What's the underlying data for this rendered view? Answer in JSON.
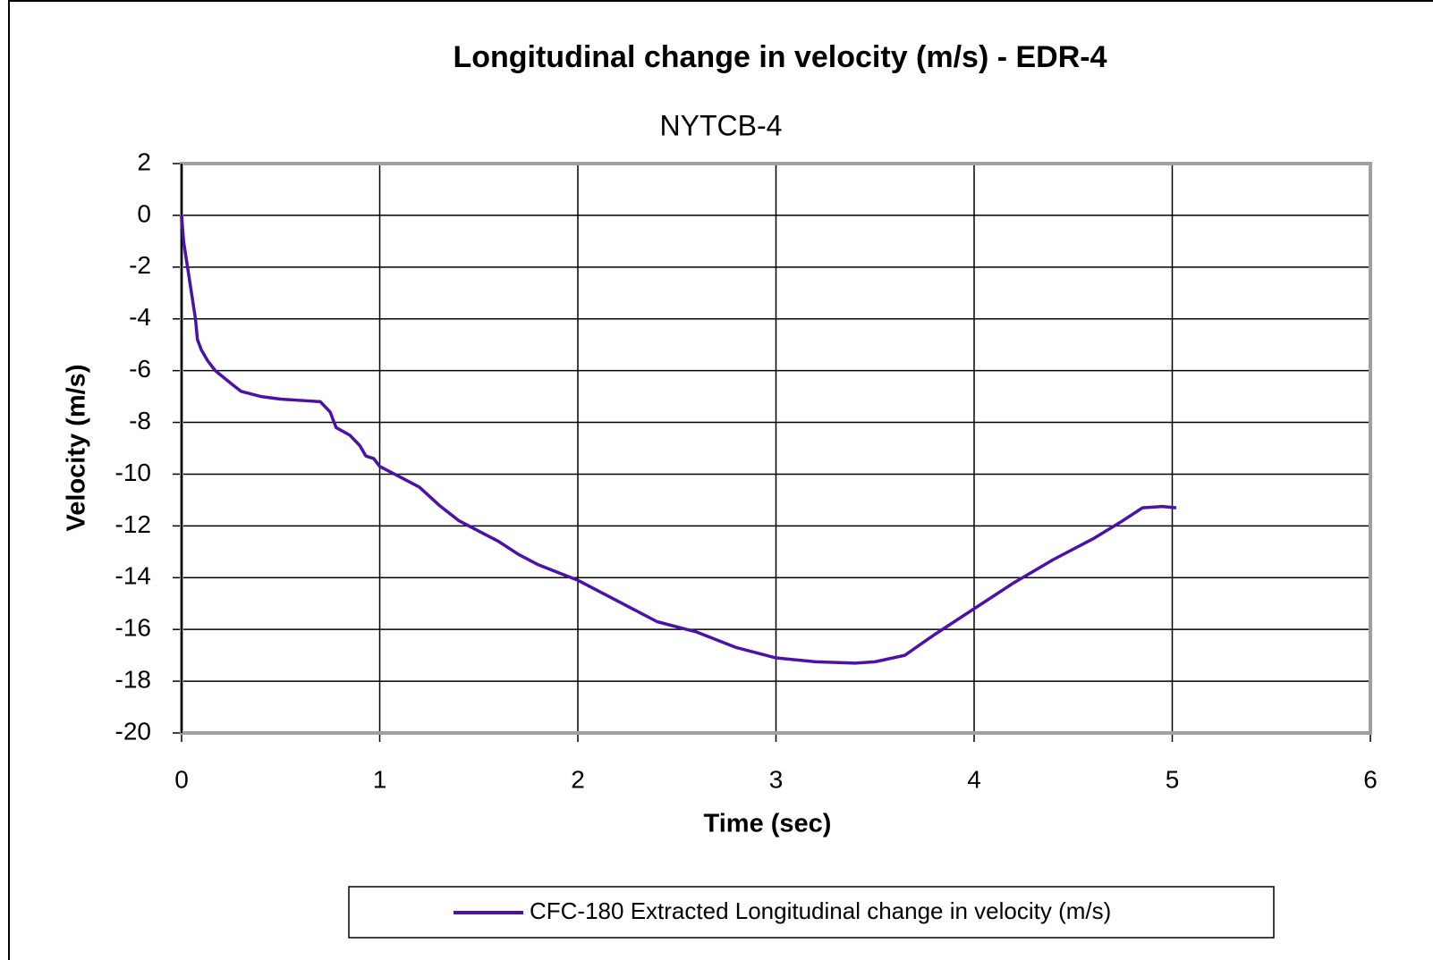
{
  "chart_data": {
    "type": "line",
    "title": "Longitudinal change in velocity (m/s) - EDR-4",
    "subtitle": "NYTCB-4",
    "xlabel": "Time (sec)",
    "ylabel": "Velocity (m/s)",
    "xlim": [
      0,
      6
    ],
    "xticks": [
      0,
      1,
      2,
      3,
      4,
      5,
      6
    ],
    "ylim": [
      -20,
      2
    ],
    "yticks": [
      -20,
      -18,
      -16,
      -14,
      -12,
      -10,
      -8,
      -6,
      -4,
      -2,
      0,
      2
    ],
    "grid": true,
    "legend": "bottom",
    "x": [
      0,
      0.01,
      0.03,
      0.05,
      0.07,
      0.08,
      0.1,
      0.13,
      0.17,
      0.25,
      0.3,
      0.4,
      0.5,
      0.6,
      0.7,
      0.75,
      0.78,
      0.85,
      0.9,
      0.93,
      0.97,
      1.0,
      1.1,
      1.2,
      1.3,
      1.4,
      1.5,
      1.6,
      1.7,
      1.8,
      1.9,
      2.0,
      2.2,
      2.4,
      2.6,
      2.8,
      3.0,
      3.2,
      3.4,
      3.5,
      3.65,
      3.8,
      4.0,
      4.2,
      4.4,
      4.6,
      4.75,
      4.85,
      4.95,
      5.02
    ],
    "series": [
      {
        "name": "CFC-180 Extracted Longitudinal change in velocity (m/s)",
        "color": "#4a12a8",
        "values": [
          0,
          -1,
          -2,
          -3,
          -4,
          -4.8,
          -5.2,
          -5.6,
          -6.0,
          -6.5,
          -6.8,
          -7.0,
          -7.1,
          -7.15,
          -7.2,
          -7.6,
          -8.2,
          -8.5,
          -8.9,
          -9.3,
          -9.4,
          -9.7,
          -10.1,
          -10.5,
          -11.2,
          -11.8,
          -12.2,
          -12.6,
          -13.1,
          -13.5,
          -13.8,
          -14.1,
          -14.9,
          -15.7,
          -16.1,
          -16.7,
          -17.1,
          -17.25,
          -17.3,
          -17.25,
          -17.0,
          -16.2,
          -15.2,
          -14.2,
          -13.3,
          -12.5,
          -11.8,
          -11.3,
          -11.25,
          -11.3
        ]
      }
    ]
  }
}
